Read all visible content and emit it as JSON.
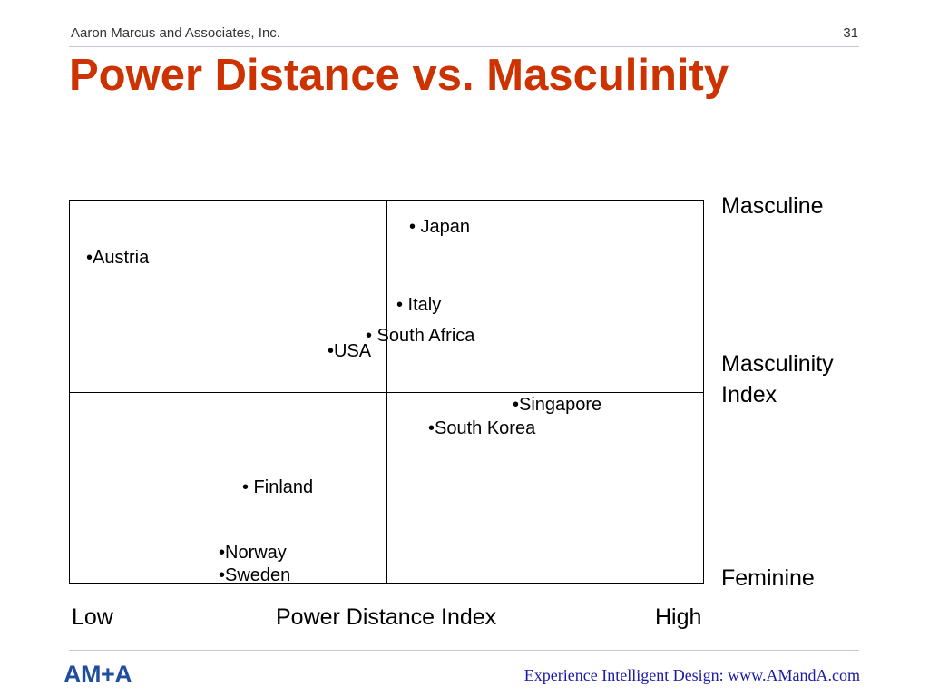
{
  "header": {
    "company": "Aaron Marcus and Associates, Inc.",
    "page_number": "31"
  },
  "title": "Power Distance vs. Masculinity",
  "chart_data": {
    "type": "scatter",
    "title": "Power Distance vs. Masculinity",
    "xlabel": "Power Distance Index",
    "x_low_label": "Low",
    "x_high_label": "High",
    "ylabel": "Masculinity Index",
    "y_high_label": "Masculine",
    "y_low_label": "Feminine",
    "grid": "quadrants",
    "points": [
      {
        "label": "• Japan"
      },
      {
        "label": "•Austria"
      },
      {
        "label": "• Italy"
      },
      {
        "label": "• South Africa"
      },
      {
        "label": "•USA"
      },
      {
        "label": "•Singapore"
      },
      {
        "label": "•South Korea"
      },
      {
        "label": "• Finland"
      },
      {
        "label": "•Norway"
      },
      {
        "label": "•Sweden"
      }
    ]
  },
  "footer": {
    "logo_text": "AM+A",
    "link_text": "Experience Intelligent Design: www.AMandA.com"
  }
}
